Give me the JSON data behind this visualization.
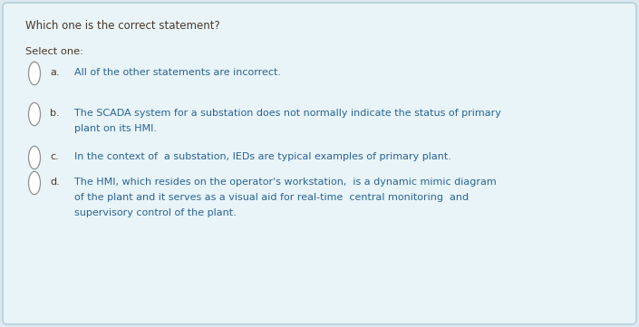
{
  "title": "Which one is the correct statement?",
  "select_label": "Select one:",
  "bg_color": "#dce9ef",
  "card_bg": "#e8f4f8",
  "border_color": "#b8d0db",
  "title_color": "#4a3728",
  "label_color": "#4a3728",
  "option_letter_color": "#4a3728",
  "option_text_color": "#2a6496",
  "figsize": [
    7.05,
    3.61
  ],
  "dpi": 100,
  "options": [
    {
      "letter": "a.",
      "lines": [
        "All of the other statements are incorrect."
      ]
    },
    {
      "letter": "b.",
      "lines": [
        "The SCADA system for a substation does not normally indicate the status of primary",
        "plant on its HMI."
      ]
    },
    {
      "letter": "c.",
      "lines": [
        "In the context of  a substation, IEDs are typical examples of primary plant."
      ]
    },
    {
      "letter": "d.",
      "lines": [
        "The HMI, which resides on the operator's workstation,  is a dynamic mimic diagram",
        "of the plant and it serves as a visual aid for real-time  central monitoring  and",
        "supervisory control of the plant."
      ]
    }
  ]
}
